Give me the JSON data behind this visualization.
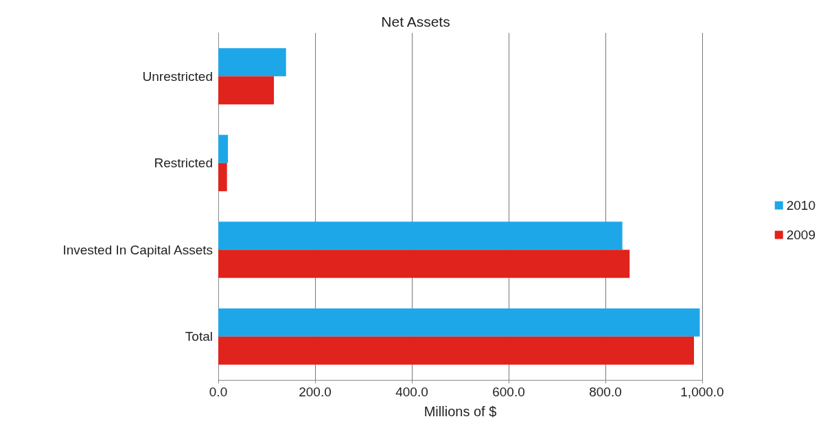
{
  "chart_data": {
    "type": "bar",
    "orientation": "horizontal",
    "title": "Net Assets",
    "xlabel": "Millions of $",
    "categories": [
      "Unrestricted",
      "Restricted",
      "Invested In Capital Assets",
      "Total"
    ],
    "series": [
      {
        "name": "2010",
        "color": "#1ea7e8",
        "values": [
          140,
          20,
          835,
          995
        ]
      },
      {
        "name": "2009",
        "color": "#e0231c",
        "values": [
          115,
          18,
          850,
          983
        ]
      }
    ],
    "xlim": [
      0,
      1000
    ],
    "xticks": [
      {
        "value": 0,
        "label": "0.0"
      },
      {
        "value": 200,
        "label": "200.0"
      },
      {
        "value": 400,
        "label": "400.0"
      },
      {
        "value": 600,
        "label": "600.0"
      },
      {
        "value": 800,
        "label": "800.0"
      },
      {
        "value": 1000,
        "label": "1,000.0"
      }
    ],
    "grid": "x",
    "legend": "right"
  }
}
